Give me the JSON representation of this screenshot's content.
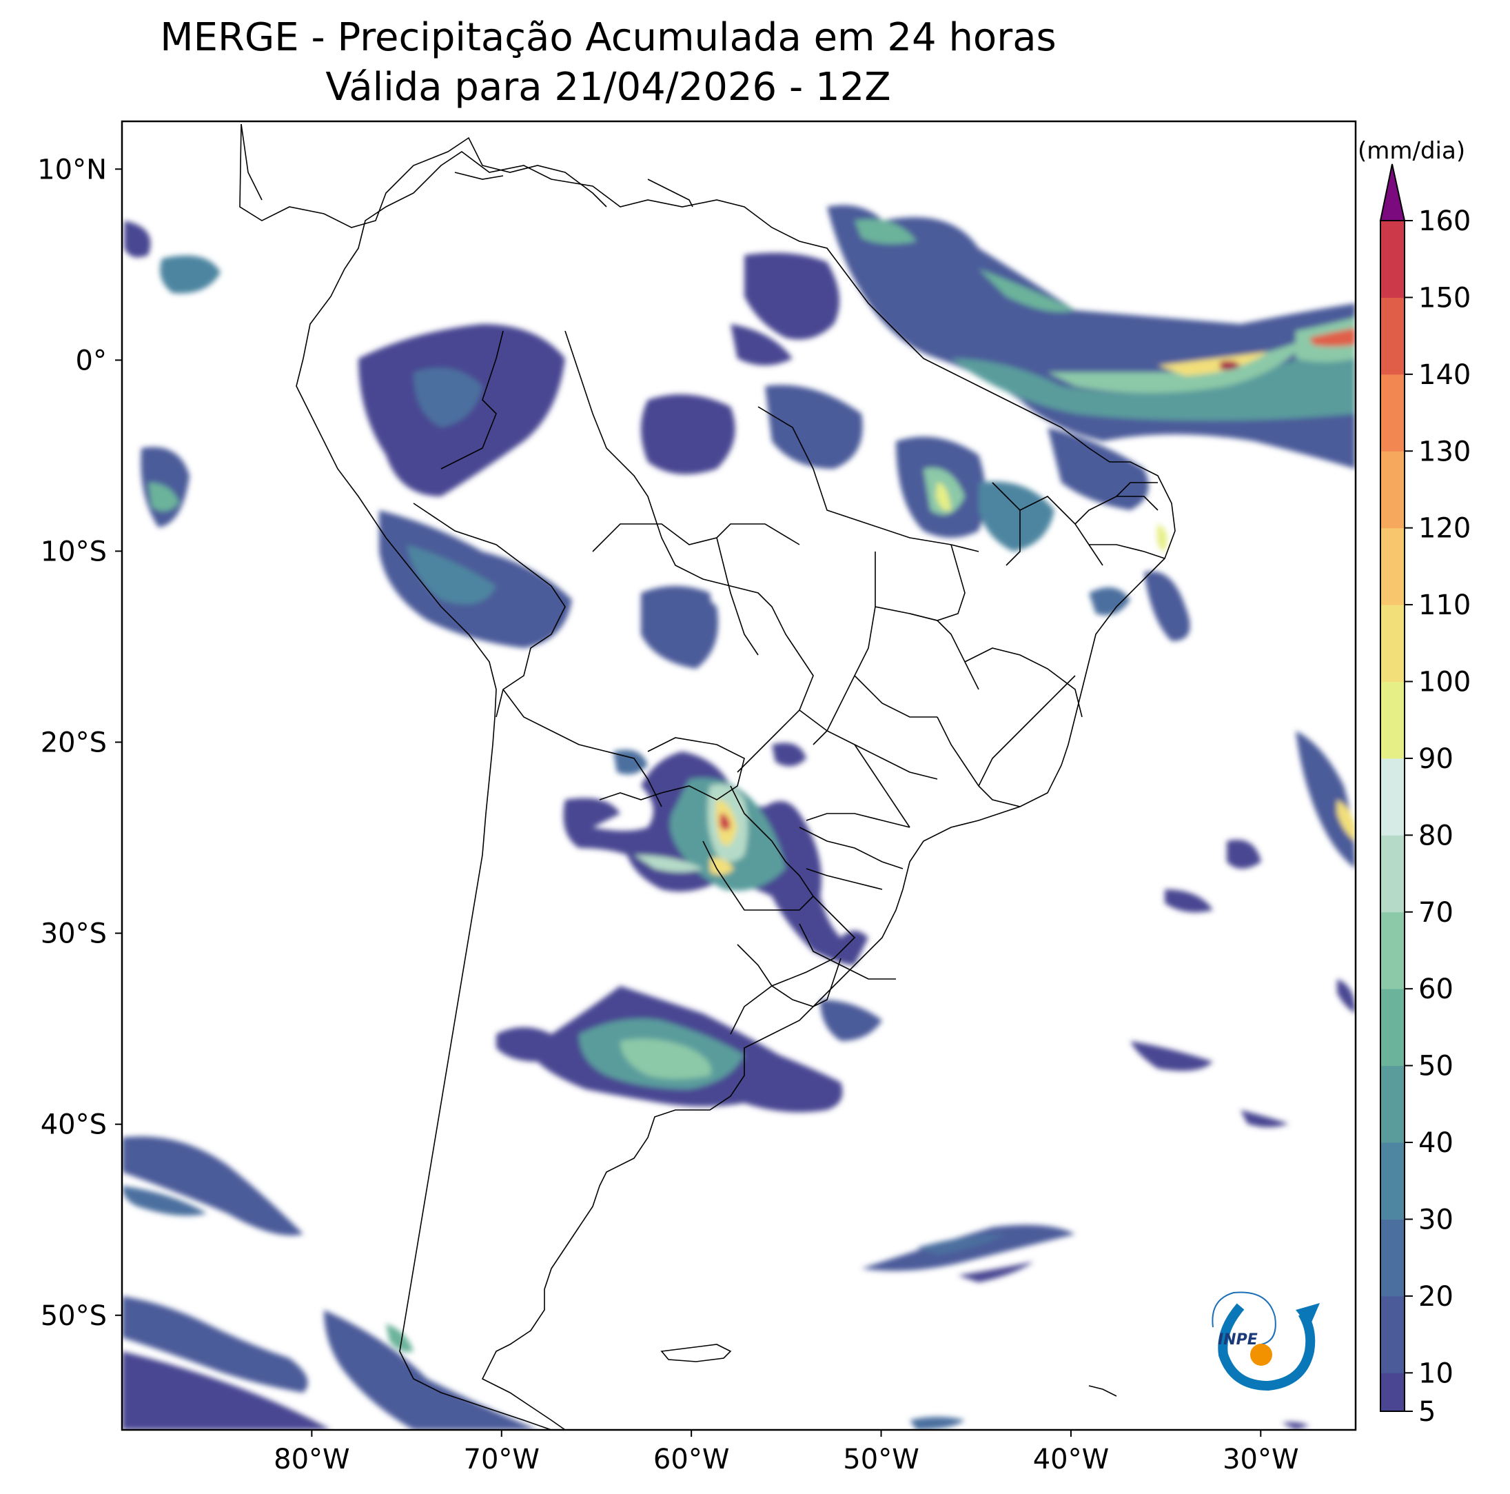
{
  "title": {
    "line1": "MERGE - Precipitação Acumulada em 24 horas",
    "line2": "Válida para 21/04/2026 - 12Z"
  },
  "map": {
    "lat_range": [
      -56,
      12.5
    ],
    "lon_range": [
      -90,
      -25
    ],
    "lat_ticks": [
      {
        "value": 10,
        "label": "10°N"
      },
      {
        "value": 0,
        "label": "0°"
      },
      {
        "value": -10,
        "label": "10°S"
      },
      {
        "value": -20,
        "label": "20°S"
      },
      {
        "value": -30,
        "label": "30°S"
      },
      {
        "value": -40,
        "label": "40°S"
      },
      {
        "value": -50,
        "label": "50°S"
      }
    ],
    "lon_ticks": [
      {
        "value": -80,
        "label": "80°W"
      },
      {
        "value": -70,
        "label": "70°W"
      },
      {
        "value": -60,
        "label": "60°W"
      },
      {
        "value": -50,
        "label": "50°W"
      },
      {
        "value": -40,
        "label": "40°W"
      },
      {
        "value": -30,
        "label": "30°W"
      }
    ],
    "precip_regions": [
      {
        "name": "north-amazon",
        "lon": -62,
        "lat": 2,
        "level": 15
      },
      {
        "name": "western-amazon",
        "lon": -71,
        "lat": -3,
        "level": 15
      },
      {
        "name": "peru-bolivia",
        "lon": -72,
        "lat": -11,
        "level": 20
      },
      {
        "name": "guianas-atlantic",
        "lon": -47,
        "lat": 4,
        "level": 30
      },
      {
        "name": "itcz-atlantic",
        "lon": -32,
        "lat": -1,
        "level": 60
      },
      {
        "name": "itcz-max",
        "lon": -27,
        "lat": 0,
        "level": 150
      },
      {
        "name": "maranhao",
        "lon": -45,
        "lat": -6,
        "level": 40
      },
      {
        "name": "paraguay-max",
        "lon": -58.5,
        "lat": -23.5,
        "level": 140
      },
      {
        "name": "argentina-central",
        "lon": -64,
        "lat": -37,
        "level": 40
      },
      {
        "name": "south-pacific",
        "lon": -83,
        "lat": -42,
        "level": 15
      },
      {
        "name": "south-atlantic",
        "lon": -43,
        "lat": -46,
        "level": 15
      }
    ]
  },
  "colorbar": {
    "unit": "(mm/dia)",
    "ticks": [
      "5",
      "10",
      "20",
      "30",
      "40",
      "50",
      "60",
      "70",
      "80",
      "90",
      "100",
      "110",
      "120",
      "130",
      "140",
      "150",
      "160"
    ],
    "levels": [
      5,
      10,
      20,
      30,
      40,
      50,
      60,
      70,
      80,
      90,
      100,
      110,
      120,
      130,
      140,
      150,
      160
    ],
    "colors": [
      "#4a4692",
      "#4b5b9a",
      "#4b6f9f",
      "#4e85a0",
      "#5a9c9c",
      "#6cb39b",
      "#8cc9a8",
      "#b5dbc8",
      "#d7ebe6",
      "#e6ef86",
      "#f2df7a",
      "#f8c66c",
      "#f6a85c",
      "#f28751",
      "#e05e48",
      "#cc3a4a",
      "#a81c4a"
    ],
    "extend_color": "#7a0a7e"
  },
  "logo": {
    "text": "INPE"
  }
}
